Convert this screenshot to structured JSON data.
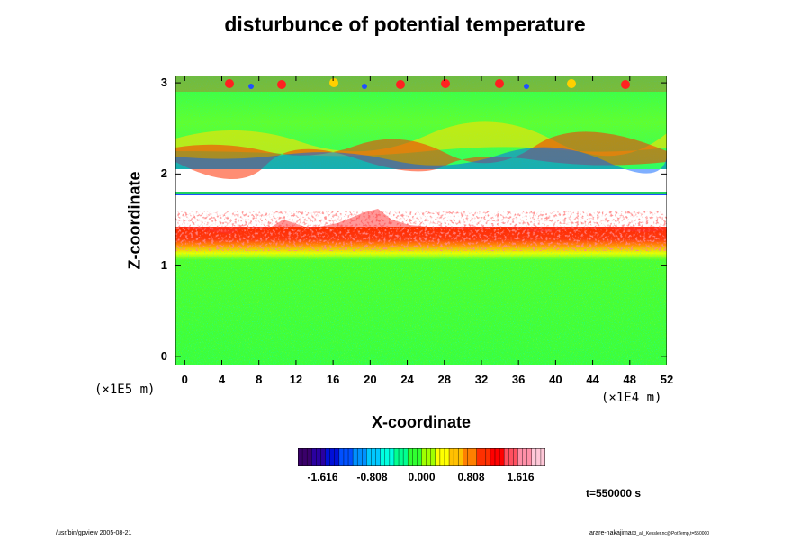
{
  "chart_data": {
    "type": "heatmap",
    "title": "disturbunce of potential temperature",
    "xlabel": "X-coordinate",
    "ylabel": "Z-coordinate",
    "x_multiplier": "(×1E4 m)",
    "y_multiplier": "(×1E5 m)",
    "xlim": [
      -1,
      52
    ],
    "ylim": [
      -0.1,
      3.08
    ],
    "x_ticks": [
      "0",
      "4",
      "8",
      "12",
      "16",
      "20",
      "24",
      "28",
      "32",
      "36",
      "40",
      "44",
      "48",
      "52"
    ],
    "x_tick_values": [
      0,
      4,
      8,
      12,
      16,
      20,
      24,
      28,
      32,
      36,
      40,
      44,
      48,
      52
    ],
    "y_ticks": [
      "0",
      "1",
      "2",
      "3"
    ],
    "y_tick_values": [
      0,
      1,
      2,
      3
    ],
    "colorbar": {
      "min": -2.02,
      "max": 2.02,
      "tick_labels": [
        "-1.616",
        "-0.808",
        "0.000",
        "0.808",
        "1.616"
      ],
      "tick_values": [
        -1.616,
        -0.808,
        0.0,
        0.808,
        1.616
      ],
      "colors": [
        "#3a006a",
        "#2a00a0",
        "#0010d8",
        "#0050ff",
        "#0090ff",
        "#00c8ff",
        "#00ffe0",
        "#00ff90",
        "#30ff30",
        "#a0ff00",
        "#ffff00",
        "#ffc000",
        "#ff8000",
        "#ff3000",
        "#ff0000",
        "#ff5060",
        "#ff90a8",
        "#ffc8d8"
      ]
    },
    "field_bands": [
      {
        "z_from": -0.1,
        "z_to": 1.0,
        "typical_value": 0.0,
        "description": "Speckled near-zero green field with scattered cyan and yellow"
      },
      {
        "z_from": 1.0,
        "z_to": 1.15,
        "typical_value": 0.6,
        "description": "yellow/orange transition"
      },
      {
        "z_from": 1.15,
        "z_to": 1.4,
        "typical_value": 1.4,
        "description": "red band"
      },
      {
        "z_from": 1.4,
        "z_to": 1.6,
        "typical_value": 1.9,
        "description": "pink/white patches (out of range)"
      },
      {
        "z_from": 1.75,
        "z_to": 1.78,
        "typical_value": 0.0,
        "description": "thin green/blue line"
      },
      {
        "z_from": 2.05,
        "z_to": 2.3,
        "typical_value": 0.0,
        "description": "oscillating multicolor layer"
      },
      {
        "z_from": 2.3,
        "z_to": 2.95,
        "typical_value": 0.0,
        "description": "wave pattern green"
      },
      {
        "z_from": 2.95,
        "z_to": 3.08,
        "typical_value": 0.0,
        "description": "small red/blue cells at top"
      }
    ]
  },
  "time_label": "t=550000 s",
  "footer_left": "/usr/bin/gpview 2005-08-21",
  "footer_right_main": "arare-nakajima",
  "footer_right_sub": "03_all_Kessler.nc@PotTemp,t=550000"
}
